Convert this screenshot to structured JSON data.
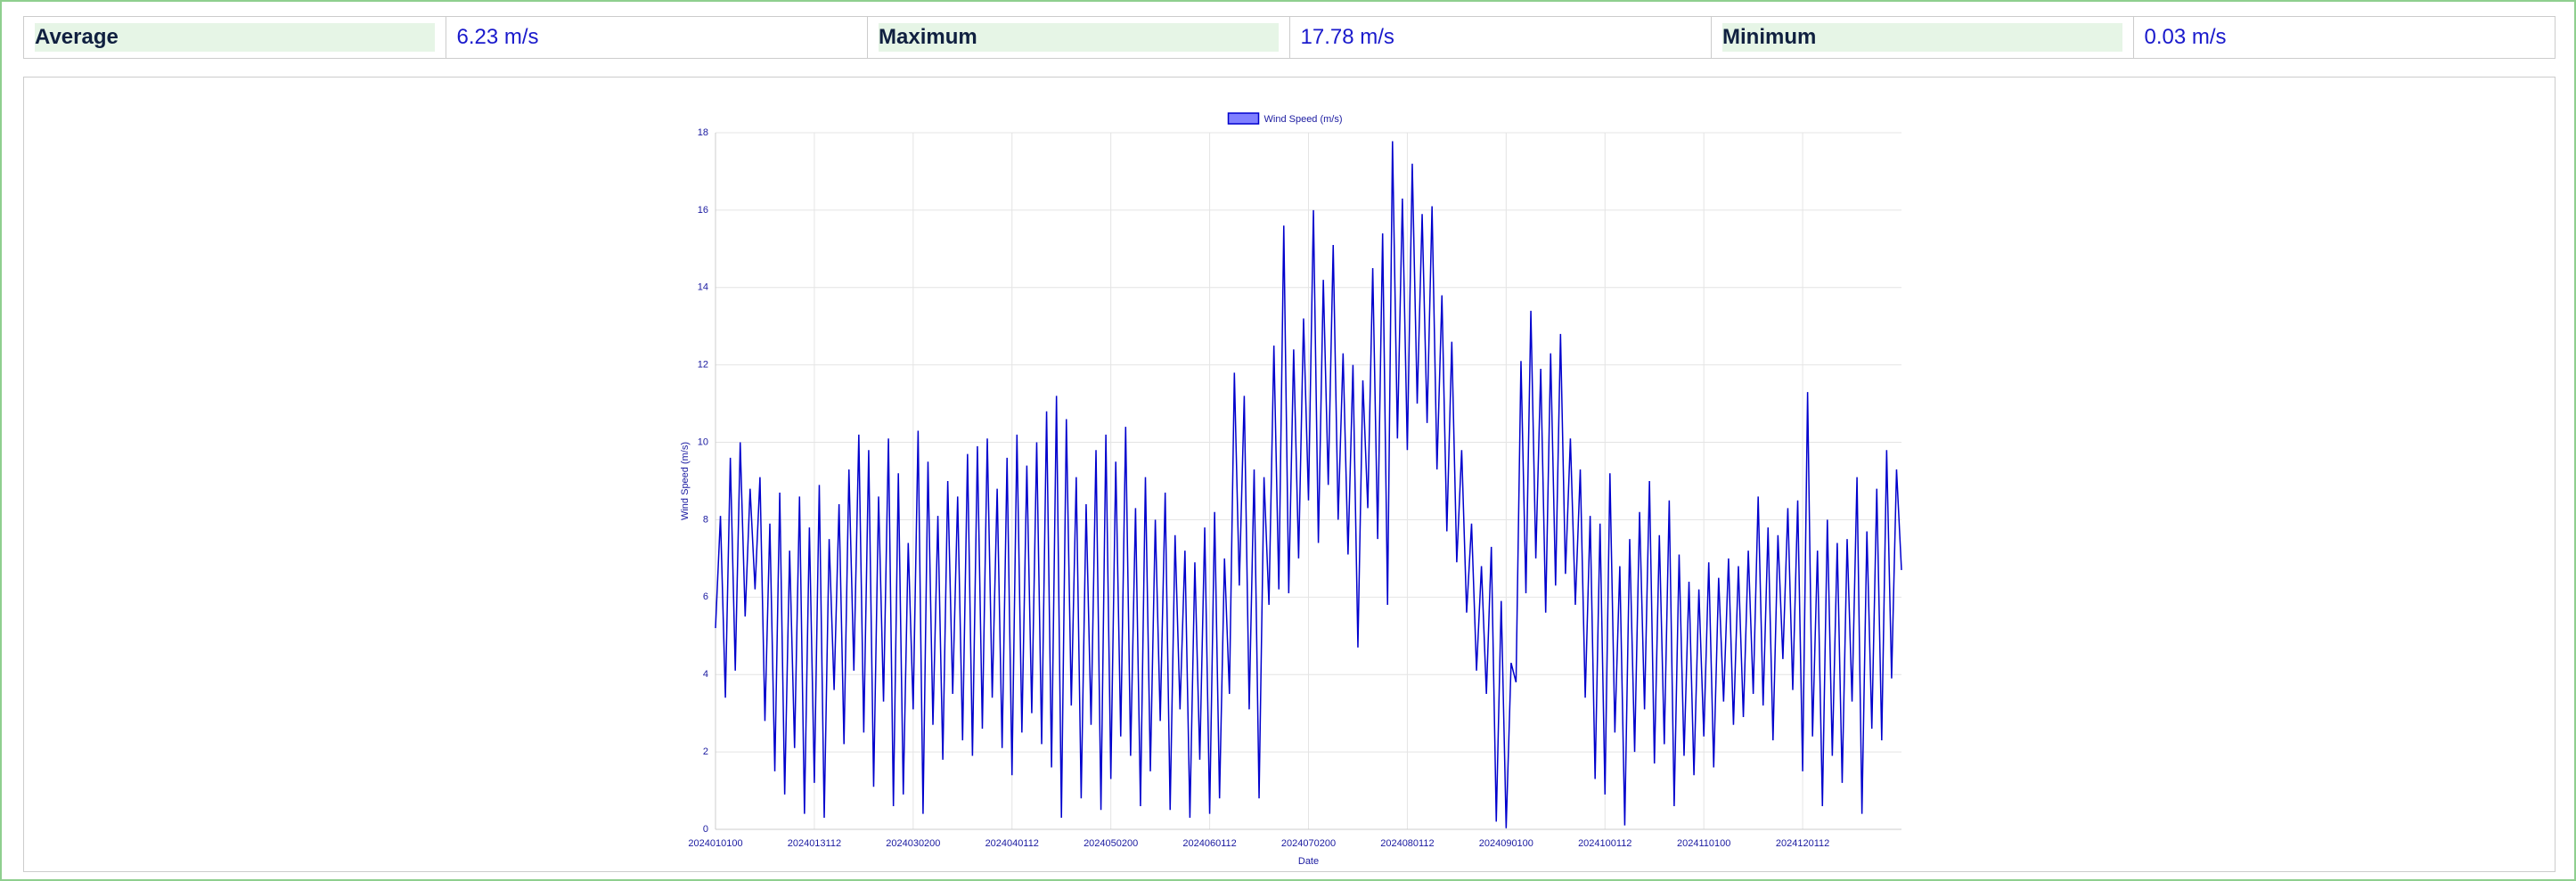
{
  "stats": [
    {
      "label": "Average",
      "value": "6.23 m/s"
    },
    {
      "label": "Maximum",
      "value": "17.78 m/s"
    },
    {
      "label": "Minimum",
      "value": "0.03 m/s"
    }
  ],
  "chart_data": {
    "type": "line",
    "legend": "top",
    "xlabel": "Date",
    "ylabel": "Wind Speed (m/s)",
    "ylim": [
      0,
      18
    ],
    "yticks": [
      0,
      2,
      4,
      6,
      8,
      10,
      12,
      14,
      16,
      18
    ],
    "grid": true,
    "categories": [
      "2024010100",
      null,
      null,
      null,
      null,
      null,
      null,
      null,
      null,
      null,
      null,
      null,
      null,
      null,
      null,
      null,
      null,
      null,
      null,
      null,
      "2024013112",
      null,
      null,
      null,
      null,
      null,
      null,
      null,
      null,
      null,
      null,
      null,
      null,
      null,
      null,
      null,
      null,
      null,
      null,
      null,
      "2024030200",
      null,
      null,
      null,
      null,
      null,
      null,
      null,
      null,
      null,
      null,
      null,
      null,
      null,
      null,
      null,
      null,
      null,
      null,
      null,
      "2024040112",
      null,
      null,
      null,
      null,
      null,
      null,
      null,
      null,
      null,
      null,
      null,
      null,
      null,
      null,
      null,
      null,
      null,
      null,
      null,
      "2024050200",
      null,
      null,
      null,
      null,
      null,
      null,
      null,
      null,
      null,
      null,
      null,
      null,
      null,
      null,
      null,
      null,
      null,
      null,
      null,
      "2024060112",
      null,
      null,
      null,
      null,
      null,
      null,
      null,
      null,
      null,
      null,
      null,
      null,
      null,
      null,
      null,
      null,
      null,
      null,
      null,
      "2024070200",
      null,
      null,
      null,
      null,
      null,
      null,
      null,
      null,
      null,
      null,
      null,
      null,
      null,
      null,
      null,
      null,
      null,
      null,
      null,
      "2024080112",
      null,
      null,
      null,
      null,
      null,
      null,
      null,
      null,
      null,
      null,
      null,
      null,
      null,
      null,
      null,
      null,
      null,
      null,
      null,
      "2024090100",
      null,
      null,
      null,
      null,
      null,
      null,
      null,
      null,
      null,
      null,
      null,
      null,
      null,
      null,
      null,
      null,
      null,
      null,
      null,
      "2024100112",
      null,
      null,
      null,
      null,
      null,
      null,
      null,
      null,
      null,
      null,
      null,
      null,
      null,
      null,
      null,
      null,
      null,
      null,
      null,
      "2024110100",
      null,
      null,
      null,
      null,
      null,
      null,
      null,
      null,
      null,
      null,
      null,
      null,
      null,
      null,
      null,
      null,
      null,
      null,
      null,
      "2024120112",
      null,
      null,
      null,
      null,
      null,
      null,
      null,
      null,
      null,
      null,
      null,
      null,
      null,
      null,
      null,
      null,
      null,
      null,
      null,
      null
    ],
    "series": [
      {
        "name": "Wind Speed (m/s)",
        "color": "#0000cd",
        "fill": "#8080ff",
        "values": [
          5.2,
          8.1,
          3.4,
          9.6,
          4.1,
          10.0,
          5.5,
          8.8,
          6.2,
          9.1,
          2.8,
          7.9,
          1.5,
          8.7,
          0.9,
          7.2,
          2.1,
          8.6,
          0.4,
          7.8,
          1.2,
          8.9,
          0.3,
          7.5,
          3.6,
          8.4,
          2.2,
          9.3,
          4.1,
          10.2,
          2.5,
          9.8,
          1.1,
          8.6,
          3.3,
          10.1,
          0.6,
          9.2,
          0.9,
          7.4,
          3.1,
          10.3,
          0.4,
          9.5,
          2.7,
          8.1,
          1.8,
          9.0,
          3.5,
          8.6,
          2.3,
          9.7,
          1.9,
          9.9,
          2.6,
          10.1,
          3.4,
          8.8,
          2.1,
          9.6,
          1.4,
          10.2,
          2.5,
          9.4,
          3.0,
          10.0,
          2.2,
          10.8,
          1.6,
          11.2,
          0.3,
          10.6,
          3.2,
          9.1,
          0.8,
          8.4,
          2.7,
          9.8,
          0.5,
          10.2,
          1.3,
          9.5,
          2.4,
          10.4,
          1.9,
          8.3,
          0.6,
          9.1,
          1.5,
          8.0,
          2.8,
          8.7,
          0.5,
          7.6,
          3.1,
          7.2,
          0.3,
          6.9,
          1.8,
          7.8,
          0.4,
          8.2,
          0.8,
          7.0,
          3.5,
          11.8,
          6.3,
          11.2,
          3.1,
          9.3,
          0.8,
          9.1,
          5.8,
          12.5,
          6.2,
          15.6,
          6.1,
          12.4,
          7.0,
          13.2,
          8.5,
          16.0,
          7.4,
          14.2,
          8.9,
          15.1,
          8.0,
          12.3,
          7.1,
          12.0,
          4.7,
          11.6,
          8.3,
          14.5,
          7.5,
          15.4,
          5.8,
          17.78,
          10.1,
          16.3,
          9.8,
          17.2,
          11.0,
          15.9,
          10.5,
          16.1,
          9.3,
          13.8,
          7.7,
          12.6,
          6.9,
          9.8,
          5.6,
          7.9,
          4.1,
          6.8,
          3.5,
          7.3,
          0.2,
          5.9,
          0.03,
          4.3,
          3.8,
          12.1,
          6.1,
          13.4,
          7.0,
          11.9,
          5.6,
          12.3,
          6.3,
          12.8,
          6.6,
          10.1,
          5.8,
          9.3,
          3.4,
          8.1,
          1.3,
          7.9,
          0.9,
          9.2,
          2.5,
          6.8,
          0.1,
          7.5,
          2.0,
          8.2,
          3.1,
          9.0,
          1.7,
          7.6,
          2.2,
          8.5,
          0.6,
          7.1,
          1.9,
          6.4,
          1.4,
          6.2,
          2.4,
          6.9,
          1.6,
          6.5,
          3.3,
          7.0,
          2.7,
          6.8,
          2.9,
          7.2,
          3.5,
          8.6,
          3.2,
          7.8,
          2.3,
          7.6,
          4.4,
          8.3,
          3.6,
          8.5,
          1.5,
          11.3,
          2.4,
          7.2,
          0.6,
          8.0,
          1.9,
          7.4,
          1.2,
          7.5,
          3.3,
          9.1,
          0.4,
          7.7,
          2.6,
          8.8,
          2.3,
          9.8,
          3.9,
          9.3,
          6.7
        ]
      }
    ]
  }
}
